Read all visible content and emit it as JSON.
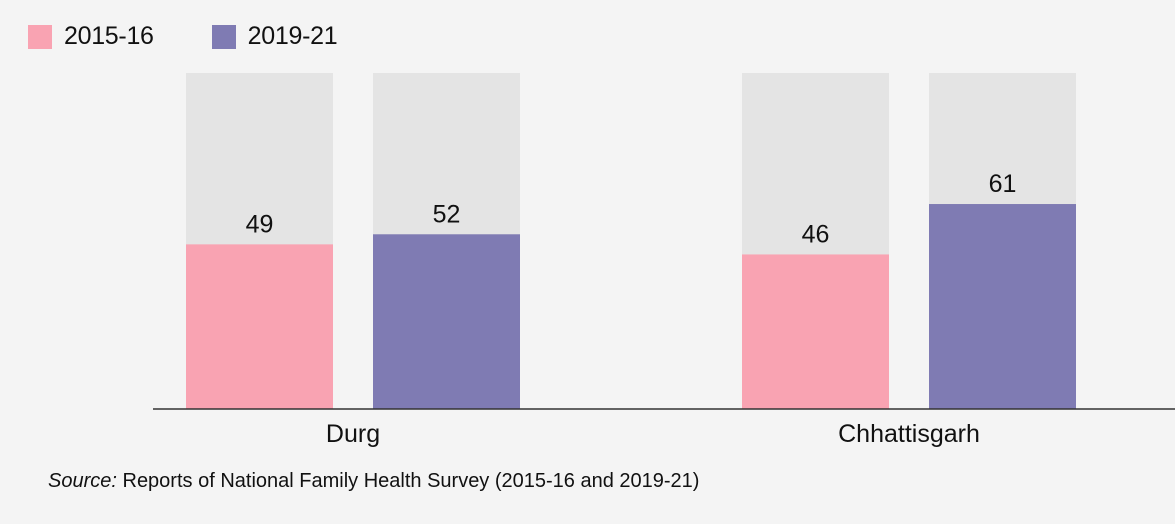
{
  "chart_data": {
    "type": "bar",
    "categories": [
      "Durg",
      "Chhattisgarh"
    ],
    "series": [
      {
        "name": "2015-16",
        "values": [
          49,
          46
        ],
        "color": "#f9a3b2"
      },
      {
        "name": "2019-21",
        "values": [
          52,
          61
        ],
        "color": "#7f7bb3"
      }
    ],
    "ylim": [
      0,
      100
    ],
    "background_bar_color": "#e4e4e4",
    "axis_color": "#333333",
    "grid": false,
    "legend_position": "top-left"
  },
  "source": {
    "prefix": "Source:",
    "text": " Reports of National Family Health Survey (2015-16 and 2019-21)"
  }
}
